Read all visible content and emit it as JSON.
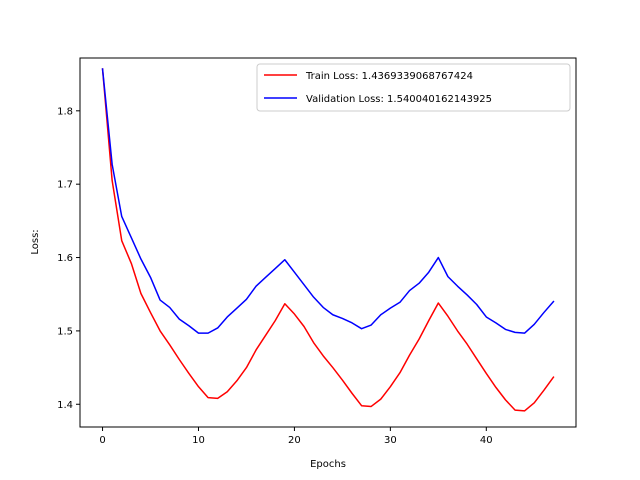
{
  "chart_data": {
    "type": "line",
    "title": "",
    "xlabel": "Epochs",
    "ylabel": "Loss:",
    "xlim": [
      -2.35,
      49.35
    ],
    "ylim": [
      1.369,
      1.872
    ],
    "xticks": [
      0,
      10,
      20,
      30,
      40
    ],
    "xtick_labels": [
      "0",
      "10",
      "20",
      "30",
      "40"
    ],
    "yticks": [
      1.4,
      1.5,
      1.6,
      1.7,
      1.8
    ],
    "ytick_labels": [
      "1.4",
      "1.5",
      "1.6",
      "1.7",
      "1.8"
    ],
    "grid": false,
    "legend_position": "upper-right",
    "series": [
      {
        "name": "Train Loss: 1.4369339068767424",
        "color": "#ff0000",
        "values": [
          1.857,
          1.705,
          1.623,
          1.592,
          1.551,
          1.525,
          1.5,
          1.481,
          1.461,
          1.442,
          1.424,
          1.409,
          1.408,
          1.417,
          1.432,
          1.45,
          1.474,
          1.494,
          1.514,
          1.537,
          1.523,
          1.506,
          1.484,
          1.466,
          1.45,
          1.433,
          1.415,
          1.398,
          1.397,
          1.407,
          1.424,
          1.443,
          1.467,
          1.489,
          1.514,
          1.538,
          1.52,
          1.5,
          1.482,
          1.462,
          1.442,
          1.423,
          1.406,
          1.392,
          1.391,
          1.402,
          1.419,
          1.437
        ]
      },
      {
        "name": "Validation Loss: 1.540040162143925",
        "color": "#0000ff",
        "values": [
          1.857,
          1.727,
          1.656,
          1.627,
          1.598,
          1.573,
          1.542,
          1.532,
          1.516,
          1.507,
          1.497,
          1.497,
          1.504,
          1.519,
          1.531,
          1.543,
          1.561,
          1.573,
          1.585,
          1.597,
          1.58,
          1.563,
          1.546,
          1.532,
          1.522,
          1.517,
          1.511,
          1.503,
          1.508,
          1.522,
          1.531,
          1.539,
          1.555,
          1.565,
          1.58,
          1.6,
          1.574,
          1.561,
          1.549,
          1.536,
          1.519,
          1.511,
          1.502,
          1.498,
          1.497,
          1.509,
          1.525,
          1.54
        ]
      }
    ]
  }
}
